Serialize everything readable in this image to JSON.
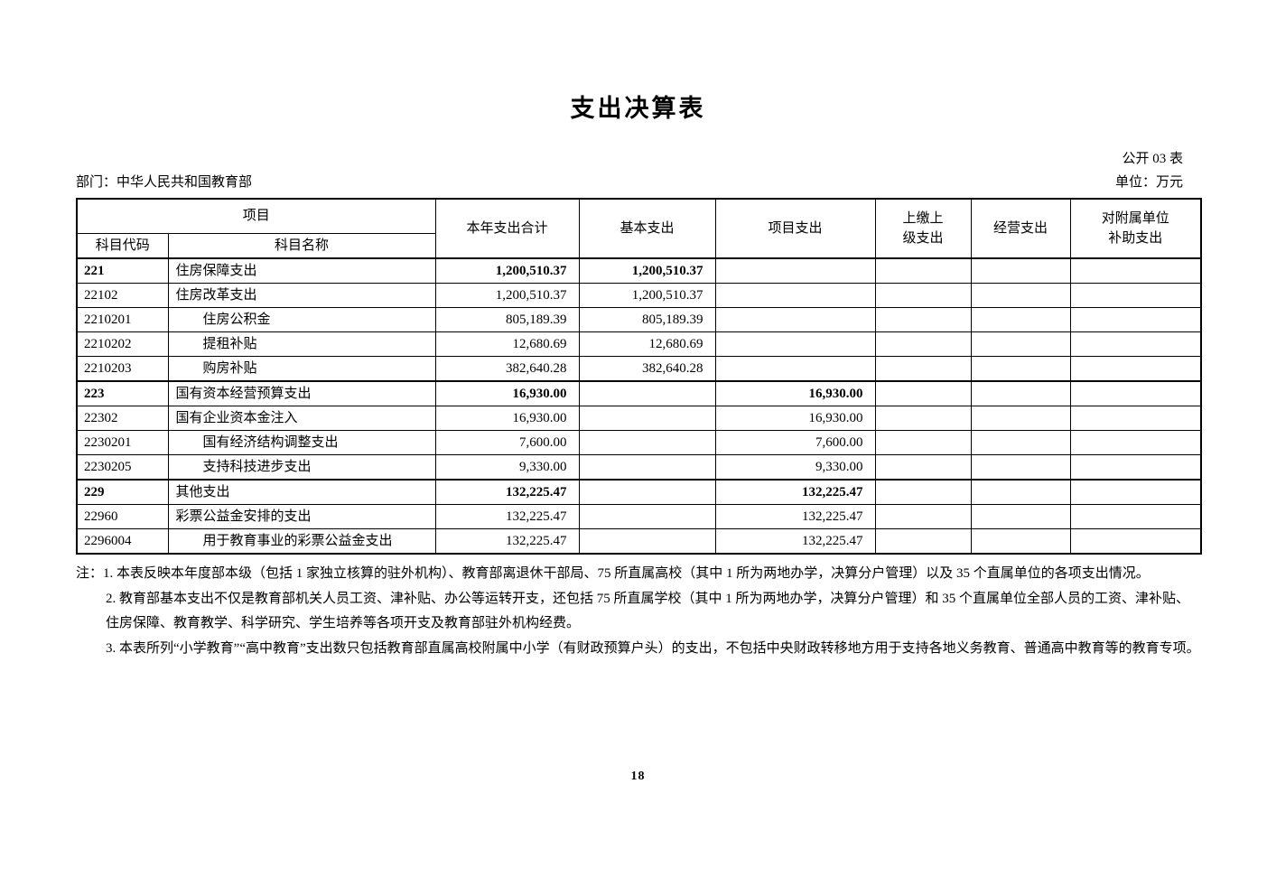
{
  "page": {
    "title": "支出决算表",
    "page_number": "18"
  },
  "meta": {
    "form_label": "公开 03 表",
    "department": "部门：中华人民共和国教育部",
    "unit": "单位：万元"
  },
  "table": {
    "columns": {
      "group_item": "项目",
      "code": "科目代码",
      "name": "科目名称",
      "total": "本年支出合计",
      "basic": "基本支出",
      "project": "项目支出",
      "upper": [
        "上缴上",
        "级支出"
      ],
      "operating": "经营支出",
      "subsidy": [
        "对附属单位",
        "补助支出"
      ]
    },
    "rows": [
      {
        "code": "221",
        "name": "住房保障支出",
        "indent": 0,
        "bold": true,
        "total": "1,200,510.37",
        "basic": "1,200,510.37",
        "project": "",
        "upper": "",
        "operating": "",
        "subsidy": ""
      },
      {
        "code": "22102",
        "name": "住房改革支出",
        "indent": 0,
        "bold": false,
        "total": "1,200,510.37",
        "basic": "1,200,510.37",
        "project": "",
        "upper": "",
        "operating": "",
        "subsidy": ""
      },
      {
        "code": "2210201",
        "name": "住房公积金",
        "indent": 1,
        "bold": false,
        "total": "805,189.39",
        "basic": "805,189.39",
        "project": "",
        "upper": "",
        "operating": "",
        "subsidy": ""
      },
      {
        "code": "2210202",
        "name": "提租补贴",
        "indent": 1,
        "bold": false,
        "total": "12,680.69",
        "basic": "12,680.69",
        "project": "",
        "upper": "",
        "operating": "",
        "subsidy": ""
      },
      {
        "code": "2210203",
        "name": "购房补贴",
        "indent": 1,
        "bold": false,
        "total": "382,640.28",
        "basic": "382,640.28",
        "project": "",
        "upper": "",
        "operating": "",
        "subsidy": ""
      },
      {
        "code": "223",
        "name": "国有资本经营预算支出",
        "indent": 0,
        "bold": true,
        "total": "16,930.00",
        "basic": "",
        "project": "16,930.00",
        "upper": "",
        "operating": "",
        "subsidy": ""
      },
      {
        "code": "22302",
        "name": "国有企业资本金注入",
        "indent": 0,
        "bold": false,
        "total": "16,930.00",
        "basic": "",
        "project": "16,930.00",
        "upper": "",
        "operating": "",
        "subsidy": ""
      },
      {
        "code": "2230201",
        "name": "国有经济结构调整支出",
        "indent": 1,
        "bold": false,
        "total": "7,600.00",
        "basic": "",
        "project": "7,600.00",
        "upper": "",
        "operating": "",
        "subsidy": ""
      },
      {
        "code": "2230205",
        "name": "支持科技进步支出",
        "indent": 1,
        "bold": false,
        "total": "9,330.00",
        "basic": "",
        "project": "9,330.00",
        "upper": "",
        "operating": "",
        "subsidy": ""
      },
      {
        "code": "229",
        "name": "其他支出",
        "indent": 0,
        "bold": true,
        "total": "132,225.47",
        "basic": "",
        "project": "132,225.47",
        "upper": "",
        "operating": "",
        "subsidy": ""
      },
      {
        "code": "22960",
        "name": "彩票公益金安排的支出",
        "indent": 0,
        "bold": false,
        "total": "132,225.47",
        "basic": "",
        "project": "132,225.47",
        "upper": "",
        "operating": "",
        "subsidy": ""
      },
      {
        "code": "2296004",
        "name": "用于教育事业的彩票公益金支出",
        "indent": 1,
        "bold": false,
        "total": "132,225.47",
        "basic": "",
        "project": "132,225.47",
        "upper": "",
        "operating": "",
        "subsidy": ""
      }
    ]
  },
  "notes": {
    "items": [
      "注：1. 本表反映本年度部本级（包括 1 家独立核算的驻外机构）、教育部离退休干部局、75 所直属高校（其中 1 所为两地办学，决算分户管理）以及 35 个直属单位的各项支出情况。",
      "2. 教育部基本支出不仅是教育部机关人员工资、津补贴、办公等运转开支，还包括 75 所直属学校（其中 1 所为两地办学，决算分户管理）和 35 个直属单位全部人员的工资、津补贴、住房保障、教育教学、科学研究、学生培养等各项开支及教育部驻外机构经费。",
      "3. 本表所列“小学教育”“高中教育”支出数只包括教育部直属高校附属中小学（有财政预算户头）的支出，不包括中央财政转移地方用于支持各地义务教育、普通高中教育等的教育专项。"
    ]
  }
}
